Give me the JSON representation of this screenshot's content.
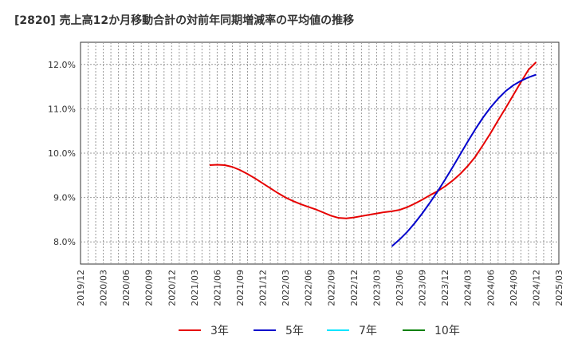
{
  "chart_data": {
    "type": "line",
    "title": "[2820]  売上高12か月移動合計の対前年同期増減率の平均値の推移",
    "xlabel": "",
    "ylabel": "",
    "ylim": [
      7.5,
      12.5
    ],
    "y_ticks": [
      8.0,
      9.0,
      10.0,
      11.0,
      12.0
    ],
    "y_tick_labels": [
      "8.0%",
      "9.0%",
      "10.0%",
      "11.0%",
      "12.0%"
    ],
    "x_range": [
      "2019/12",
      "2025/03"
    ],
    "x_tick_labels": [
      "2019/12",
      "2020/03",
      "2020/06",
      "2020/09",
      "2020/12",
      "2021/03",
      "2021/06",
      "2021/09",
      "2021/12",
      "2022/03",
      "2022/06",
      "2022/09",
      "2022/12",
      "2023/03",
      "2023/06",
      "2023/09",
      "2023/12",
      "2024/03",
      "2024/06",
      "2024/09",
      "2024/12",
      "2025/03"
    ],
    "grid": true,
    "legend_position": "bottom",
    "series": [
      {
        "name": "3年",
        "color": "#e60000",
        "points": [
          [
            "2021/05",
            9.73
          ],
          [
            "2021/06",
            9.74
          ],
          [
            "2021/07",
            9.73
          ],
          [
            "2021/08",
            9.69
          ],
          [
            "2021/09",
            9.62
          ],
          [
            "2021/10",
            9.53
          ],
          [
            "2021/11",
            9.43
          ],
          [
            "2021/12",
            9.32
          ],
          [
            "2022/01",
            9.21
          ],
          [
            "2022/02",
            9.1
          ],
          [
            "2022/03",
            9.0
          ],
          [
            "2022/04",
            8.92
          ],
          [
            "2022/05",
            8.85
          ],
          [
            "2022/06",
            8.79
          ],
          [
            "2022/07",
            8.73
          ],
          [
            "2022/08",
            8.66
          ],
          [
            "2022/09",
            8.59
          ],
          [
            "2022/10",
            8.54
          ],
          [
            "2022/11",
            8.53
          ],
          [
            "2022/12",
            8.55
          ],
          [
            "2023/01",
            8.58
          ],
          [
            "2023/02",
            8.61
          ],
          [
            "2023/03",
            8.64
          ],
          [
            "2023/04",
            8.67
          ],
          [
            "2023/05",
            8.69
          ],
          [
            "2023/06",
            8.72
          ],
          [
            "2023/07",
            8.78
          ],
          [
            "2023/08",
            8.86
          ],
          [
            "2023/09",
            8.95
          ],
          [
            "2023/10",
            9.05
          ],
          [
            "2023/11",
            9.14
          ],
          [
            "2023/12",
            9.25
          ],
          [
            "2024/01",
            9.38
          ],
          [
            "2024/02",
            9.53
          ],
          [
            "2024/03",
            9.71
          ],
          [
            "2024/04",
            9.92
          ],
          [
            "2024/05",
            10.18
          ],
          [
            "2024/06",
            10.45
          ],
          [
            "2024/07",
            10.74
          ],
          [
            "2024/08",
            11.02
          ],
          [
            "2024/09",
            11.31
          ],
          [
            "2024/10",
            11.6
          ],
          [
            "2024/11",
            11.88
          ],
          [
            "2024/12",
            12.05
          ]
        ]
      },
      {
        "name": "5年",
        "color": "#0000cc",
        "points": [
          [
            "2023/05",
            7.9
          ],
          [
            "2023/06",
            8.05
          ],
          [
            "2023/07",
            8.22
          ],
          [
            "2023/08",
            8.42
          ],
          [
            "2023/09",
            8.64
          ],
          [
            "2023/10",
            8.88
          ],
          [
            "2023/11",
            9.13
          ],
          [
            "2023/12",
            9.4
          ],
          [
            "2024/01",
            9.68
          ],
          [
            "2024/02",
            9.97
          ],
          [
            "2024/03",
            10.26
          ],
          [
            "2024/04",
            10.54
          ],
          [
            "2024/05",
            10.8
          ],
          [
            "2024/06",
            11.03
          ],
          [
            "2024/07",
            11.23
          ],
          [
            "2024/08",
            11.4
          ],
          [
            "2024/09",
            11.53
          ],
          [
            "2024/10",
            11.63
          ],
          [
            "2024/11",
            11.71
          ],
          [
            "2024/12",
            11.77
          ]
        ]
      },
      {
        "name": "7年",
        "color": "#00e5ff",
        "points": []
      },
      {
        "name": "10年",
        "color": "#008000",
        "points": []
      }
    ]
  }
}
